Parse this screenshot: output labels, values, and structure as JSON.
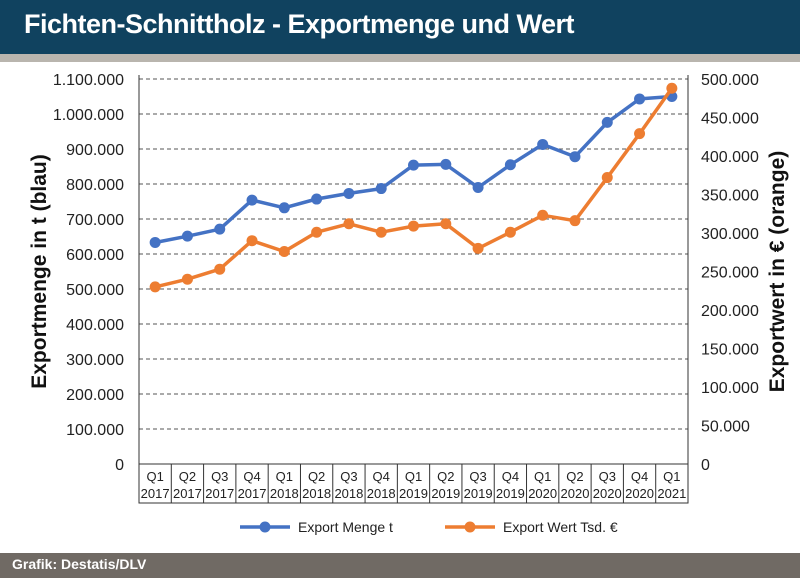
{
  "header": {
    "title": "Fichten-Schnittholz - Exportmenge und Wert"
  },
  "footer": {
    "source": "Grafik: Destatis/DLV"
  },
  "colors": {
    "title_bg": "#10425f",
    "footer_bg": "#706a64",
    "blue": "#4472c4",
    "orange": "#ed7d31"
  },
  "chart_data": {
    "type": "line",
    "categories": [
      [
        "Q1",
        "2017"
      ],
      [
        "Q2",
        "2017"
      ],
      [
        "Q3",
        "2017"
      ],
      [
        "Q4",
        "2017"
      ],
      [
        "Q1",
        "2018"
      ],
      [
        "Q2",
        "2018"
      ],
      [
        "Q3",
        "2018"
      ],
      [
        "Q4",
        "2018"
      ],
      [
        "Q1",
        "2019"
      ],
      [
        "Q2",
        "2019"
      ],
      [
        "Q3",
        "2019"
      ],
      [
        "Q4",
        "2019"
      ],
      [
        "Q1",
        "2020"
      ],
      [
        "Q2",
        "2020"
      ],
      [
        "Q3",
        "2020"
      ],
      [
        "Q4",
        "2020"
      ],
      [
        "Q1",
        "2021"
      ]
    ],
    "ylabel_left": "Exportmenge in t (blau)",
    "ylabel_right": "Exportwert in € (orange)",
    "ylim_left": [
      0,
      1100000
    ],
    "ylim_right": [
      0,
      500000
    ],
    "yticks_left": [
      "0",
      "100.000",
      "200.000",
      "300.000",
      "400.000",
      "500.000",
      "600.000",
      "700.000",
      "800.000",
      "900.000",
      "1.000.000",
      "1.100.000"
    ],
    "yticks_right": [
      "0",
      "50.000",
      "100.000",
      "150.000",
      "200.000",
      "250.000",
      "300.000",
      "350.000",
      "400.000",
      "450.000",
      "500.000"
    ],
    "grid": true,
    "legend_position": "bottom",
    "series": [
      {
        "name": "Export Menge t",
        "axis": "left",
        "color": "#4472c4",
        "values": [
          633000,
          651000,
          671000,
          754000,
          732000,
          757000,
          773000,
          787000,
          854000,
          856000,
          790000,
          855000,
          913000,
          878000,
          976000,
          1043000,
          1050000
        ]
      },
      {
        "name": "Export Wert Tsd. €",
        "axis": "right",
        "color": "#ed7d31",
        "values": [
          230000,
          240000,
          253000,
          290000,
          276000,
          301000,
          312000,
          301000,
          309000,
          312000,
          280000,
          301000,
          323000,
          316000,
          372000,
          429000,
          488000
        ]
      }
    ]
  }
}
